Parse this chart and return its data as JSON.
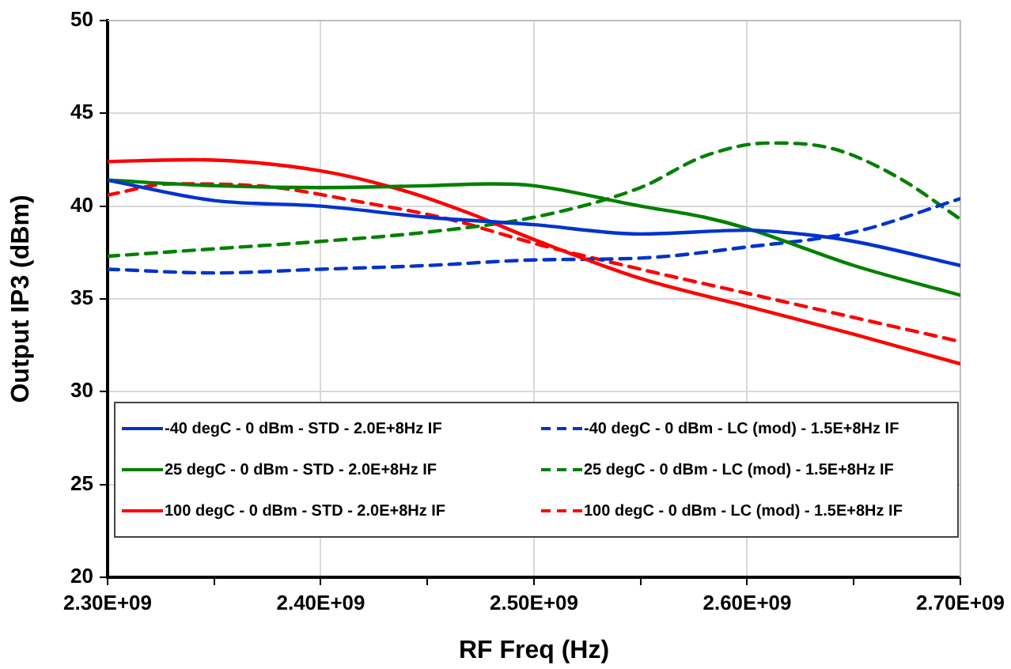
{
  "chart_data": {
    "type": "line",
    "xlabel": "RF Freq (Hz)",
    "ylabel": "Output IP3 (dBm)",
    "xlim": [
      2300000000,
      2700000000
    ],
    "xticks": [
      {
        "value": 2300000000,
        "label": "2.30E+09"
      },
      {
        "value": 2350000000,
        "label": null
      },
      {
        "value": 2400000000,
        "label": "2.40E+09"
      },
      {
        "value": 2450000000,
        "label": null
      },
      {
        "value": 2500000000,
        "label": "2.50E+09"
      },
      {
        "value": 2550000000,
        "label": null
      },
      {
        "value": 2600000000,
        "label": "2.60E+09"
      },
      {
        "value": 2650000000,
        "label": null
      },
      {
        "value": 2700000000,
        "label": "2.70E+09"
      }
    ],
    "ylim": [
      20,
      50
    ],
    "yticks": [
      20,
      25,
      30,
      35,
      40,
      45,
      50
    ],
    "grid": true,
    "legend": "bottom",
    "marker": "none",
    "series": [
      {
        "name": "-40 degC - 0 dBm - STD - 2.0E+8Hz IF",
        "color": "#0033cc",
        "line_style": "solid",
        "x": [
          2300000000,
          2350000000,
          2400000000,
          2450000000,
          2500000000,
          2550000000,
          2600000000,
          2625000000,
          2650000000,
          2700000000
        ],
        "values": [
          41.4,
          40.3,
          40.0,
          39.4,
          39.0,
          38.5,
          38.7,
          38.5,
          38.1,
          36.8
        ]
      },
      {
        "name": "25 degC - 0 dBm - STD - 2.0E+8Hz IF",
        "color": "#008000",
        "line_style": "solid",
        "x": [
          2300000000,
          2350000000,
          2400000000,
          2450000000,
          2480000000,
          2500000000,
          2550000000,
          2580000000,
          2600000000,
          2650000000,
          2700000000
        ],
        "values": [
          41.4,
          41.1,
          41.0,
          41.1,
          41.2,
          41.1,
          40.0,
          39.4,
          38.8,
          36.8,
          35.2
        ]
      },
      {
        "name": "100 degC - 0 dBm - STD - 2.0E+8Hz IF",
        "color": "#ff0000",
        "line_style": "solid",
        "x": [
          2300000000,
          2340000000,
          2400000000,
          2440000000,
          2470000000,
          2500000000,
          2550000000,
          2600000000,
          2650000000,
          2700000000
        ],
        "values": [
          42.4,
          42.5,
          41.9,
          40.8,
          39.6,
          38.2,
          36.1,
          34.6,
          33.1,
          31.5
        ]
      },
      {
        "name": "-40 degC - 0 dBm - LC (mod) - 1.5E+8Hz IF",
        "color": "#0033cc",
        "line_style": "dashed",
        "x": [
          2300000000,
          2350000000,
          2400000000,
          2450000000,
          2500000000,
          2550000000,
          2600000000,
          2650000000,
          2700000000
        ],
        "values": [
          36.6,
          36.4,
          36.6,
          36.8,
          37.1,
          37.2,
          37.8,
          38.6,
          40.4
        ]
      },
      {
        "name": "25 degC - 0 dBm - LC (mod) - 1.5E+8Hz IF",
        "color": "#008000",
        "line_style": "dashed",
        "x": [
          2300000000,
          2350000000,
          2400000000,
          2450000000,
          2500000000,
          2550000000,
          2580000000,
          2610000000,
          2640000000,
          2670000000,
          2700000000
        ],
        "values": [
          37.3,
          37.7,
          38.1,
          38.6,
          39.4,
          41.0,
          42.7,
          43.4,
          43.1,
          41.6,
          39.3
        ]
      },
      {
        "name": "100 degC - 0 dBm - LC (mod) - 1.5E+8Hz IF",
        "color": "#ff0000",
        "line_style": "dashed",
        "x": [
          2300000000,
          2330000000,
          2370000000,
          2420000000,
          2460000000,
          2500000000,
          2550000000,
          2600000000,
          2650000000,
          2700000000
        ],
        "values": [
          40.6,
          41.2,
          41.1,
          40.2,
          39.3,
          38.0,
          36.6,
          35.3,
          34.0,
          32.7
        ]
      }
    ]
  }
}
